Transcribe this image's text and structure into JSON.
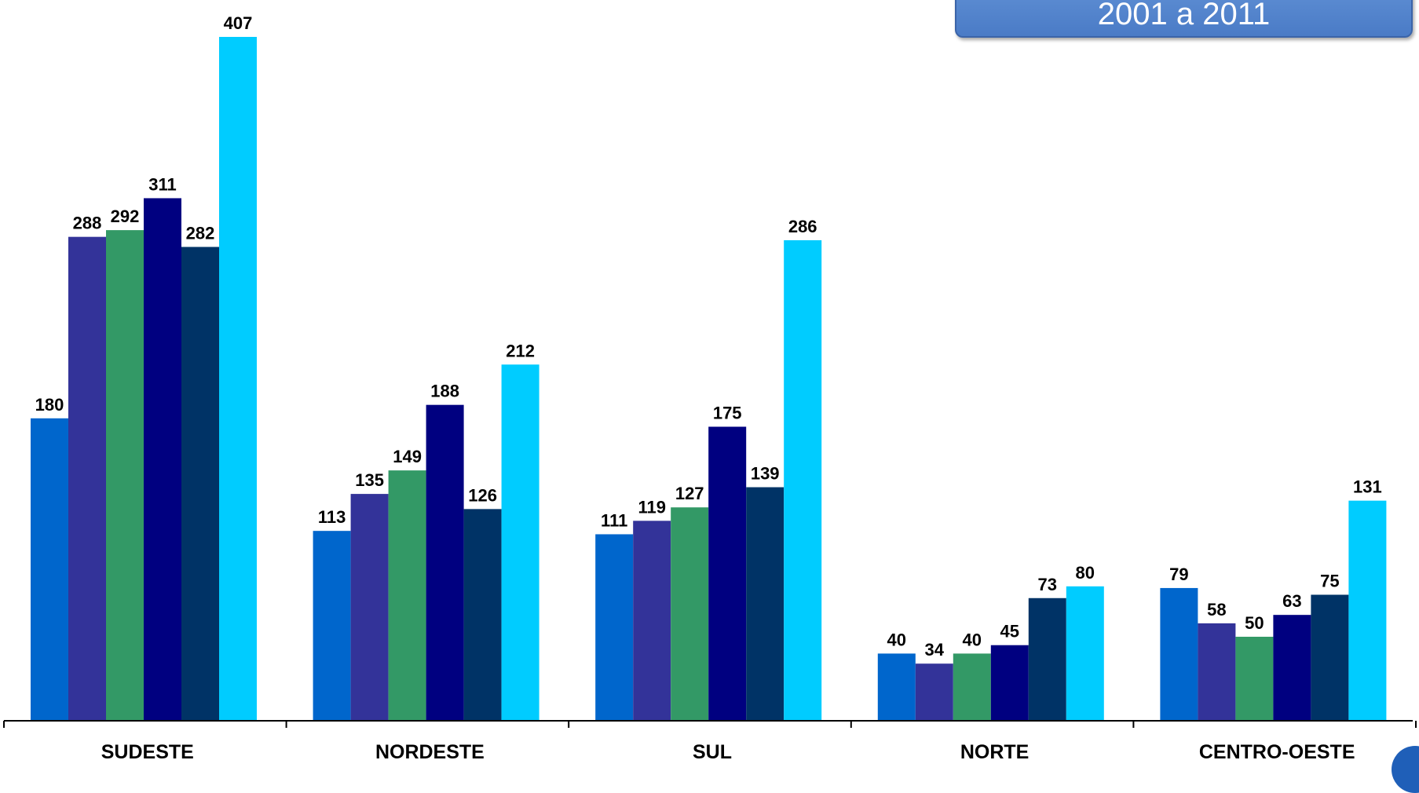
{
  "period_badge": "2001 a 2011",
  "chart_data": {
    "type": "bar",
    "categories": [
      "SUDESTE",
      "NORDESTE",
      "SUL",
      "NORTE",
      "CENTRO-OESTE"
    ],
    "series": [
      {
        "values": [
          180,
          113,
          111,
          40,
          79
        ],
        "color": "#0066CC"
      },
      {
        "values": [
          288,
          135,
          119,
          34,
          58
        ],
        "color": "#333399"
      },
      {
        "values": [
          292,
          149,
          127,
          40,
          50
        ],
        "color": "#339966"
      },
      {
        "values": [
          311,
          188,
          175,
          45,
          63
        ],
        "color": "#000080"
      },
      {
        "values": [
          282,
          126,
          139,
          73,
          75
        ],
        "color": "#003366"
      },
      {
        "values": [
          407,
          212,
          286,
          80,
          131
        ],
        "color": "#00CCFF"
      }
    ],
    "title": "",
    "xlabel": "",
    "ylabel": "",
    "ylim": [
      0,
      407
    ],
    "grid": false,
    "legend": "none",
    "data_labels": true
  }
}
